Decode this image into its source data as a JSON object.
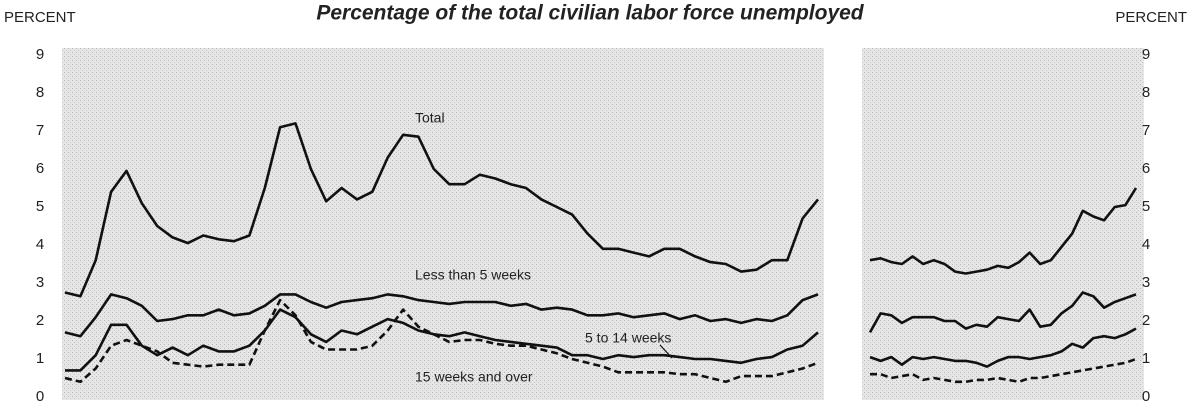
{
  "chart_data": [
    {
      "type": "line",
      "title": "Percentage of the total civilian labor force unemployed",
      "ylabel": "PERCENT",
      "ylim": [
        0,
        9
      ],
      "yticks": [
        0,
        1,
        2,
        3,
        4,
        5,
        6,
        7,
        8,
        9
      ],
      "series": [
        {
          "name": "Total",
          "color": "#111111",
          "style": "solid",
          "values": [
            2.75,
            2.65,
            3.6,
            5.4,
            5.95,
            5.1,
            4.5,
            4.2,
            4.05,
            4.25,
            4.15,
            4.1,
            4.25,
            5.5,
            7.1,
            7.2,
            6.0,
            5.15,
            5.5,
            5.2,
            5.4,
            6.3,
            6.9,
            6.85,
            6.0,
            5.6,
            5.6,
            5.85,
            5.75,
            5.6,
            5.5,
            5.2,
            5.0,
            4.8,
            4.3,
            3.9,
            3.9,
            3.8,
            3.7,
            3.9,
            3.9,
            3.7,
            3.55,
            3.5,
            3.3,
            3.35,
            3.6,
            3.6,
            4.7,
            5.2
          ]
        },
        {
          "name": "Less than 5 weeks",
          "color": "#111111",
          "style": "solid",
          "values": [
            1.7,
            1.6,
            2.1,
            2.7,
            2.6,
            2.4,
            2.0,
            2.05,
            2.15,
            2.15,
            2.3,
            2.15,
            2.2,
            2.4,
            2.7,
            2.7,
            2.5,
            2.35,
            2.5,
            2.55,
            2.6,
            2.7,
            2.65,
            2.55,
            2.5,
            2.45,
            2.5,
            2.5,
            2.5,
            2.4,
            2.45,
            2.3,
            2.35,
            2.3,
            2.15,
            2.15,
            2.2,
            2.1,
            2.15,
            2.2,
            2.05,
            2.15,
            2.0,
            2.05,
            1.95,
            2.05,
            2.0,
            2.15,
            2.55,
            2.7
          ]
        },
        {
          "name": "5 to 14 weeks",
          "color": "#111111",
          "style": "solid",
          "values": [
            0.7,
            0.7,
            1.1,
            1.9,
            1.9,
            1.35,
            1.1,
            1.3,
            1.1,
            1.35,
            1.2,
            1.2,
            1.35,
            1.75,
            2.3,
            2.1,
            1.65,
            1.45,
            1.75,
            1.65,
            1.85,
            2.05,
            1.95,
            1.75,
            1.65,
            1.6,
            1.7,
            1.6,
            1.5,
            1.45,
            1.4,
            1.35,
            1.3,
            1.1,
            1.1,
            1.0,
            1.1,
            1.05,
            1.1,
            1.1,
            1.05,
            1.0,
            1.0,
            0.95,
            0.9,
            1.0,
            1.05,
            1.25,
            1.35,
            1.7
          ]
        },
        {
          "name": "15 weeks and over",
          "color": "#111111",
          "style": "dashed",
          "values": [
            0.5,
            0.4,
            0.75,
            1.35,
            1.5,
            1.35,
            1.2,
            0.9,
            0.85,
            0.8,
            0.85,
            0.85,
            0.85,
            1.75,
            2.55,
            2.15,
            1.45,
            1.25,
            1.25,
            1.25,
            1.35,
            1.75,
            2.3,
            1.85,
            1.65,
            1.45,
            1.5,
            1.5,
            1.4,
            1.35,
            1.35,
            1.25,
            1.15,
            1.0,
            0.9,
            0.8,
            0.65,
            0.65,
            0.65,
            0.65,
            0.6,
            0.6,
            0.5,
            0.4,
            0.55,
            0.55,
            0.55,
            0.65,
            0.75,
            0.9
          ]
        }
      ]
    },
    {
      "type": "line",
      "ylabel": "PERCENT",
      "ylim": [
        0,
        9
      ],
      "yticks": [
        0,
        1,
        2,
        3,
        4,
        5,
        6,
        7,
        8,
        9
      ],
      "series": [
        {
          "color": "#111111",
          "style": "solid",
          "values": [
            3.6,
            3.65,
            3.55,
            3.5,
            3.7,
            3.5,
            3.6,
            3.5,
            3.3,
            3.25,
            3.3,
            3.35,
            3.45,
            3.4,
            3.55,
            3.8,
            3.5,
            3.6,
            3.95,
            4.3,
            4.9,
            4.75,
            4.65,
            5.0,
            5.05,
            5.5
          ]
        },
        {
          "color": "#111111",
          "style": "solid",
          "values": [
            1.7,
            2.2,
            2.15,
            1.95,
            2.1,
            2.1,
            2.1,
            2.0,
            2.0,
            1.8,
            1.9,
            1.85,
            2.1,
            2.05,
            2.0,
            2.3,
            1.85,
            1.9,
            2.2,
            2.4,
            2.75,
            2.65,
            2.35,
            2.5,
            2.6,
            2.7
          ]
        },
        {
          "color": "#111111",
          "style": "solid",
          "values": [
            1.05,
            0.95,
            1.05,
            0.85,
            1.05,
            1.0,
            1.05,
            1.0,
            0.95,
            0.95,
            0.9,
            0.8,
            0.95,
            1.05,
            1.05,
            1.0,
            1.05,
            1.1,
            1.2,
            1.4,
            1.3,
            1.55,
            1.6,
            1.55,
            1.65,
            1.8
          ]
        },
        {
          "color": "#111111",
          "style": "dashed",
          "values": [
            0.6,
            0.6,
            0.5,
            0.55,
            0.6,
            0.45,
            0.5,
            0.45,
            0.4,
            0.4,
            0.45,
            0.45,
            0.5,
            0.45,
            0.4,
            0.5,
            0.5,
            0.55,
            0.6,
            0.65,
            0.7,
            0.75,
            0.8,
            0.85,
            0.9,
            1.0
          ]
        }
      ]
    }
  ]
}
